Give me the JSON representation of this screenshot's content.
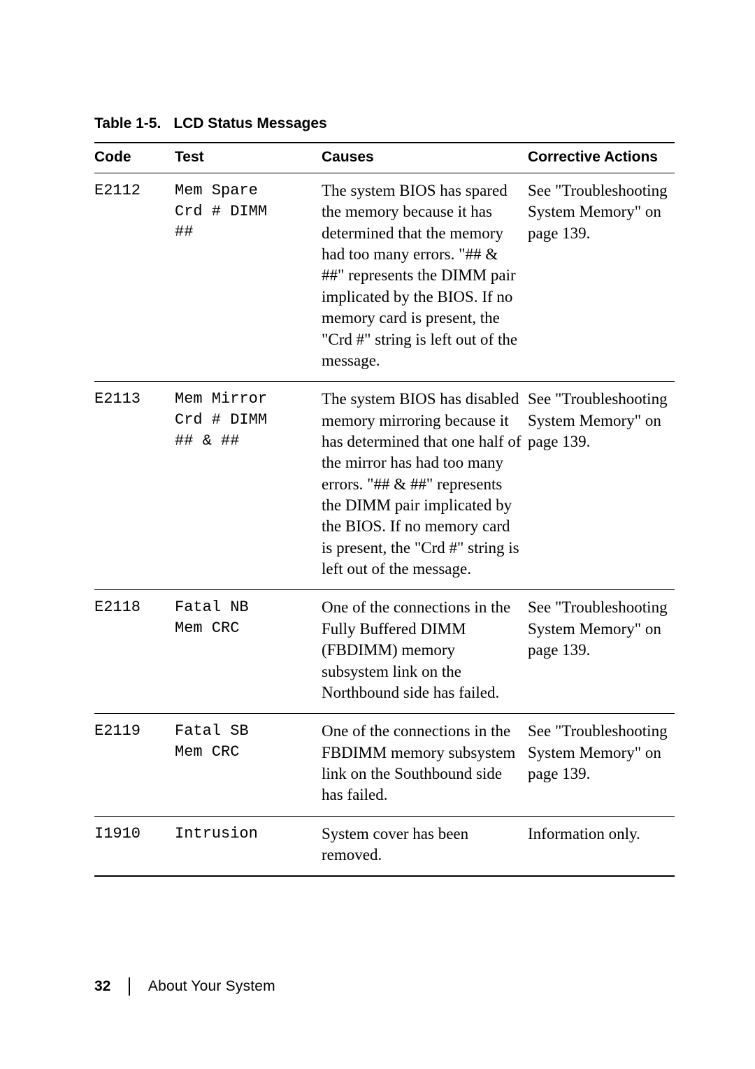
{
  "caption": {
    "label": "Table 1-5.",
    "title": "LCD Status Messages"
  },
  "headers": [
    "Code",
    "Test",
    "Causes",
    "Corrective Actions"
  ],
  "rows": [
    {
      "code": "E2112",
      "test": "Mem Spare\nCrd # DIMM\n##",
      "causes": "The system BIOS has spared the memory because it has determined that the memory had too many errors. \"## & ##\" represents the DIMM pair implicated by the BIOS. If no memory card is present, the \"Crd #\" string is left out of the message.",
      "action": "See \"Troubleshooting System Memory\" on page 139."
    },
    {
      "code": "E2113",
      "test": "Mem Mirror\nCrd # DIMM\n## & ##",
      "causes": "The system BIOS has disabled memory mirroring because it has determined that one half of the mirror has had too many errors. \"## & ##\" represents the DIMM pair implicated by the BIOS. If no memory card is present, the \"Crd #\" string is left out of the message.",
      "action": "See \"Troubleshooting System Memory\" on page 139."
    },
    {
      "code": "E2118",
      "test": "Fatal NB\nMem CRC",
      "causes": "One of the connections in the Fully Buffered DIMM (FBDIMM) memory subsystem link on the Northbound side has failed.",
      "action": "See \"Troubleshooting System Memory\" on page 139."
    },
    {
      "code": "E2119",
      "test": "Fatal SB\nMem CRC",
      "causes": "One of the connections in the FBDIMM memory subsystem link on the Southbound side has failed.",
      "action": "See \"Troubleshooting System Memory\" on page 139."
    },
    {
      "code": "I1910",
      "test": "Intrusion",
      "causes": "System cover has been removed.",
      "action": "Information only."
    }
  ],
  "footer": {
    "page": "32",
    "section": "About Your System"
  },
  "colors": {
    "text": "#000000",
    "background": "#ffffff",
    "rule": "#000000"
  },
  "fonts": {
    "body_serif": "Georgia",
    "heading_sans": "Helvetica",
    "mono": "Courier New"
  }
}
